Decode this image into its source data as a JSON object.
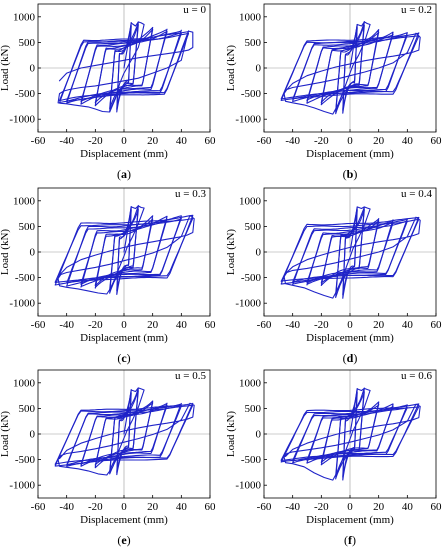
{
  "figure": {
    "line_color": "#1f23c8",
    "zero_line_color": "#9a9a9a"
  },
  "chart_data": [
    {
      "type": "line",
      "panel_tag": "u = 0",
      "caption_open": "(",
      "caption_letter": "a",
      "caption_close": ")",
      "xlabel": "Displacement (mm)",
      "ylabel": "Load (kN)",
      "xlim": [
        -60,
        60
      ],
      "ylim": [
        -1250,
        1250
      ],
      "xticks": [
        -60,
        -40,
        -20,
        0,
        20,
        40,
        60
      ],
      "yticks": [
        -1000,
        -500,
        0,
        500,
        1000
      ],
      "grid": false,
      "series": [
        {
          "cycles": [
            [
              5,
              880,
              -860
            ],
            [
              10,
              900,
              -850
            ],
            [
              20,
              800,
              -730
            ],
            [
              30,
              760,
              -700
            ],
            [
              40,
              730,
              -690
            ],
            [
              45,
              720,
              -680
            ]
          ],
          "x": [
            0,
            3,
            5,
            6,
            8,
            10,
            12,
            14,
            12,
            10,
            8,
            6,
            4,
            2,
            0,
            -3,
            -6,
            -10,
            -15,
            -20,
            -25,
            -30,
            -35,
            -40,
            -44,
            -46,
            -45,
            -42,
            -38,
            -30,
            -20,
            -10,
            0,
            10,
            20,
            30,
            40,
            45,
            48,
            48,
            45,
            40,
            30,
            20,
            10,
            0,
            -10,
            -20,
            -30,
            -40,
            -45
          ],
          "y": [
            0,
            500,
            880,
            860,
            820,
            900,
            880,
            850,
            600,
            400,
            300,
            200,
            100,
            0,
            -100,
            -300,
            -600,
            -860,
            -850,
            -800,
            -760,
            -740,
            -720,
            -700,
            -690,
            -680,
            -500,
            -450,
            -420,
            -380,
            -350,
            -300,
            -250,
            -200,
            -100,
            0,
            150,
            720,
            700,
            400,
            350,
            320,
            280,
            240,
            200,
            150,
            100,
            50,
            0,
            -100,
            -250
          ]
        }
      ]
    },
    {
      "type": "line",
      "panel_tag": "u = 0.2",
      "caption_open": "(",
      "caption_letter": "b",
      "caption_close": ")",
      "xlabel": "Displacement (mm)",
      "ylabel": "Load (kN)",
      "xlim": [
        -60,
        60
      ],
      "ylim": [
        -1250,
        1250
      ],
      "xticks": [
        -60,
        -40,
        -20,
        0,
        20,
        40,
        60
      ],
      "yticks": [
        -1000,
        -500,
        0,
        500,
        1000
      ],
      "grid": false,
      "series": [
        {
          "cycles": [
            [
              5,
              850,
              -880
            ],
            [
              10,
              900,
              -900
            ],
            [
              20,
              750,
              -720
            ],
            [
              30,
              700,
              -680
            ],
            [
              40,
              690,
              -650
            ],
            [
              48,
              680,
              -640
            ]
          ],
          "x": [
            0,
            3,
            5,
            8,
            10,
            12,
            14,
            10,
            6,
            2,
            0,
            -4,
            -8,
            -12,
            -18,
            -25,
            -32,
            -40,
            -45,
            -46,
            -44,
            -40,
            -30,
            -20,
            -10,
            0,
            10,
            20,
            30,
            40,
            46,
            49,
            48,
            44,
            38,
            30,
            20,
            10,
            0,
            -10,
            -20,
            -30,
            -40,
            -45
          ],
          "y": [
            0,
            500,
            850,
            820,
            900,
            870,
            850,
            500,
            250,
            50,
            -100,
            -400,
            -700,
            -900,
            -850,
            -780,
            -720,
            -680,
            -650,
            -500,
            -420,
            -380,
            -330,
            -280,
            -220,
            -150,
            -80,
            0,
            100,
            300,
            680,
            600,
            350,
            310,
            270,
            230,
            190,
            140,
            80,
            20,
            -60,
            -150,
            -300,
            -450
          ]
        }
      ]
    },
    {
      "type": "line",
      "panel_tag": "u = 0.3",
      "caption_open": "(",
      "caption_letter": "c",
      "caption_close": ")",
      "xlabel": "Displacement (mm)",
      "ylabel": "Load (kN)",
      "xlim": [
        -60,
        60
      ],
      "ylim": [
        -1250,
        1250
      ],
      "xticks": [
        -60,
        -40,
        -20,
        0,
        20,
        40,
        60
      ],
      "yticks": [
        -1000,
        -500,
        0,
        500,
        1000
      ],
      "grid": false,
      "series": [
        {
          "cycles": [
            [
              5,
              880,
              -820
            ],
            [
              10,
              900,
              -800
            ],
            [
              20,
              700,
              -700
            ],
            [
              30,
              690,
              -680
            ],
            [
              40,
              700,
              -660
            ],
            [
              48,
              710,
              -640
            ]
          ],
          "x": [
            0,
            3,
            5,
            8,
            10,
            12,
            14,
            10,
            6,
            2,
            0,
            -4,
            -8,
            -12,
            -18,
            -25,
            -32,
            -40,
            -45,
            -46,
            -44,
            -40,
            -30,
            -20,
            -10,
            0,
            10,
            20,
            30,
            40,
            46,
            49,
            48,
            44,
            38,
            30,
            20,
            10,
            0,
            -10,
            -20,
            -30,
            -40,
            -45
          ],
          "y": [
            0,
            500,
            880,
            850,
            900,
            870,
            860,
            550,
            300,
            80,
            -80,
            -350,
            -650,
            -820,
            -800,
            -760,
            -720,
            -690,
            -660,
            -520,
            -440,
            -400,
            -350,
            -300,
            -240,
            -170,
            -100,
            -20,
            90,
            300,
            710,
            650,
            380,
            330,
            290,
            250,
            200,
            150,
            90,
            20,
            -60,
            -150,
            -300,
            -450
          ]
        }
      ]
    },
    {
      "type": "line",
      "panel_tag": "u = 0.4",
      "caption_open": "(",
      "caption_letter": "d",
      "caption_close": ")",
      "xlabel": "Displacement (mm)",
      "ylabel": "Load (kN)",
      "xlim": [
        -60,
        60
      ],
      "ylim": [
        -1250,
        1250
      ],
      "xticks": [
        -60,
        -40,
        -20,
        0,
        20,
        40,
        60
      ],
      "yticks": [
        -1000,
        -500,
        0,
        500,
        1000
      ],
      "grid": false,
      "series": [
        {
          "cycles": [
            [
              5,
              880,
              -900
            ],
            [
              10,
              880,
              -880
            ],
            [
              20,
              650,
              -650
            ],
            [
              30,
              620,
              -640
            ],
            [
              40,
              640,
              -630
            ],
            [
              48,
              680,
              -620
            ]
          ],
          "x": [
            0,
            3,
            5,
            8,
            10,
            12,
            14,
            10,
            6,
            2,
            0,
            -4,
            -8,
            -12,
            -18,
            -25,
            -32,
            -40,
            -45,
            -46,
            -44,
            -40,
            -30,
            -20,
            -10,
            0,
            10,
            20,
            30,
            40,
            46,
            49,
            48,
            44,
            38,
            30,
            20,
            10,
            0,
            -10,
            -20,
            -30,
            -40,
            -45
          ],
          "y": [
            0,
            500,
            880,
            850,
            880,
            860,
            840,
            520,
            280,
            60,
            -100,
            -400,
            -700,
            -900,
            -850,
            -780,
            -700,
            -650,
            -620,
            -480,
            -400,
            -360,
            -320,
            -270,
            -210,
            -140,
            -70,
            0,
            100,
            300,
            680,
            620,
            360,
            320,
            280,
            240,
            200,
            150,
            90,
            20,
            -60,
            -150,
            -290,
            -420
          ]
        }
      ]
    },
    {
      "type": "line",
      "panel_tag": "u = 0.5",
      "caption_open": "(",
      "caption_letter": "e",
      "caption_close": ")",
      "xlabel": "Displacement (mm)",
      "ylabel": "Load (kN)",
      "xlim": [
        -60,
        60
      ],
      "ylim": [
        -1250,
        1250
      ],
      "xticks": [
        -60,
        -40,
        -20,
        0,
        20,
        40,
        60
      ],
      "yticks": [
        -1000,
        -500,
        0,
        500,
        1000
      ],
      "grid": false,
      "series": [
        {
          "cycles": [
            [
              5,
              860,
              -800
            ],
            [
              10,
              900,
              -780
            ],
            [
              20,
              650,
              -650
            ],
            [
              30,
              600,
              -630
            ],
            [
              40,
              590,
              -640
            ],
            [
              48,
              600,
              -630
            ]
          ],
          "x": [
            0,
            3,
            5,
            8,
            10,
            12,
            14,
            10,
            6,
            2,
            0,
            -4,
            -8,
            -12,
            -18,
            -25,
            -32,
            -40,
            -45,
            -46,
            -44,
            -40,
            -30,
            -20,
            -10,
            0,
            10,
            20,
            30,
            40,
            46,
            49,
            48,
            44,
            38,
            30,
            20,
            10,
            0,
            -10,
            -20,
            -30,
            -40,
            -45
          ],
          "y": [
            0,
            500,
            860,
            830,
            900,
            880,
            860,
            520,
            280,
            60,
            -80,
            -350,
            -650,
            -800,
            -780,
            -720,
            -680,
            -650,
            -630,
            -500,
            -420,
            -380,
            -340,
            -290,
            -230,
            -160,
            -90,
            -10,
            90,
            280,
            600,
            560,
            330,
            290,
            250,
            210,
            170,
            120,
            60,
            -10,
            -90,
            -180,
            -320,
            -480
          ]
        }
      ]
    },
    {
      "type": "line",
      "panel_tag": "u = 0.6",
      "caption_open": "(",
      "caption_letter": "f",
      "caption_close": ")",
      "xlabel": "Displacement (mm)",
      "ylabel": "Load (kN)",
      "xlim": [
        -60,
        60
      ],
      "ylim": [
        -1250,
        1250
      ],
      "xticks": [
        -60,
        -40,
        -20,
        0,
        20,
        40,
        60
      ],
      "yticks": [
        -1000,
        -500,
        0,
        500,
        1000
      ],
      "grid": false,
      "series": [
        {
          "cycles": [
            [
              5,
              880,
              -900
            ],
            [
              10,
              890,
              -880
            ],
            [
              20,
              620,
              -600
            ],
            [
              30,
              580,
              -560
            ],
            [
              40,
              560,
              -560
            ],
            [
              48,
              580,
              -550
            ]
          ],
          "x": [
            0,
            3,
            5,
            8,
            10,
            12,
            14,
            10,
            6,
            2,
            0,
            -4,
            -8,
            -12,
            -18,
            -25,
            -32,
            -40,
            -45,
            -46,
            -44,
            -40,
            -30,
            -20,
            -10,
            0,
            10,
            20,
            30,
            40,
            46,
            49,
            48,
            44,
            38,
            30,
            20,
            10,
            0,
            -10,
            -20,
            -30,
            -40,
            -45
          ],
          "y": [
            0,
            500,
            880,
            850,
            890,
            870,
            850,
            520,
            280,
            60,
            -100,
            -400,
            -700,
            -900,
            -850,
            -760,
            -640,
            -580,
            -560,
            -450,
            -380,
            -350,
            -310,
            -270,
            -220,
            -160,
            -90,
            -20,
            80,
            250,
            580,
            540,
            320,
            280,
            240,
            200,
            160,
            110,
            60,
            -10,
            -90,
            -180,
            -300,
            -440
          ]
        }
      ]
    }
  ]
}
